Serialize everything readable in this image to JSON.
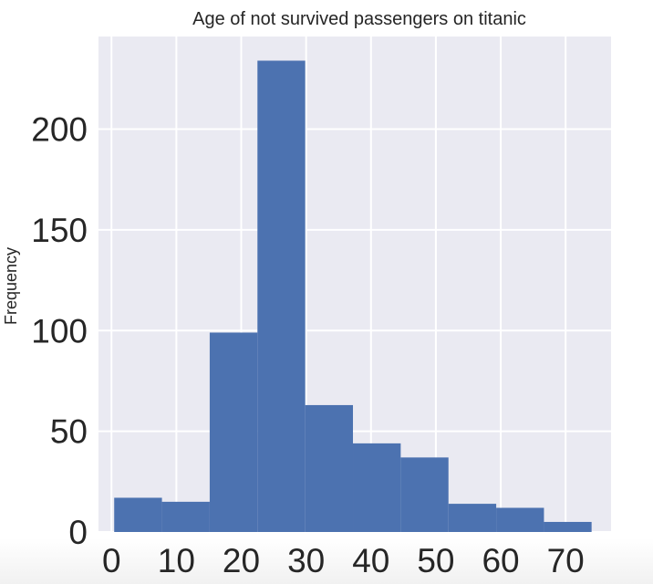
{
  "chart_data": {
    "type": "bar",
    "title": "Age of not survived passengers on titanic",
    "xlabel": "",
    "ylabel": "Frequency",
    "bin_edges": [
      0.42,
      7.78,
      15.14,
      22.5,
      29.86,
      37.22,
      44.58,
      51.94,
      59.3,
      66.66,
      74.0
    ],
    "values": [
      17,
      15,
      99,
      234,
      63,
      44,
      37,
      14,
      12,
      5
    ],
    "xlim": [
      -2,
      77
    ],
    "ylim": [
      0,
      246
    ],
    "xticks": [
      0,
      10,
      20,
      30,
      40,
      50,
      60,
      70
    ],
    "yticks": [
      0,
      50,
      100,
      150,
      200
    ],
    "grid": true,
    "bar_color": "#4c72b0",
    "background_color": "#eaeaf2",
    "grid_color": "#ffffff"
  }
}
